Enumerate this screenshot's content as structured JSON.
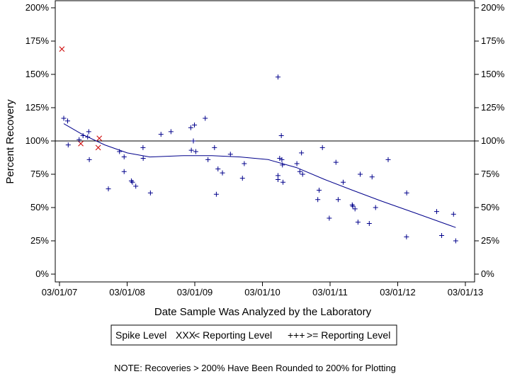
{
  "chart_data": {
    "type": "scatter",
    "xlabel": "Date Sample Was Analyzed by the Laboratory",
    "ylabel": "Percent Recovery",
    "x_ticks": [
      "03/01/07",
      "03/01/08",
      "03/01/09",
      "03/01/10",
      "03/01/11",
      "03/01/12",
      "03/01/13"
    ],
    "x_range": [
      "2007-03-01",
      "2013-03-01"
    ],
    "y_ticks": [
      "0%",
      "25%",
      "50%",
      "75%",
      "100%",
      "125%",
      "150%",
      "175%",
      "200%"
    ],
    "ylim": [
      0,
      200
    ],
    "reference_line": 100,
    "grid": false,
    "legend": {
      "title": "Spike Level",
      "position": "bottom-center",
      "entries": [
        {
          "symbol": "XXX",
          "label": "< Reporting Level",
          "color": "#cc0000"
        },
        {
          "symbol": "+++",
          "label": ">= Reporting Level",
          "color": "#00008b"
        }
      ]
    },
    "series": [
      {
        "name": "< Reporting Level",
        "marker": "x",
        "color": "#cc0000",
        "points": [
          {
            "x": "2007-03-14",
            "y": 169
          },
          {
            "x": "2007-06-24",
            "y": 98
          },
          {
            "x": "2007-09-26",
            "y": 95
          },
          {
            "x": "2007-10-02",
            "y": 102
          }
        ]
      },
      {
        "name": ">= Reporting Level",
        "marker": "+",
        "color": "#00008b",
        "points": [
          {
            "x": "2007-03-24",
            "y": 117
          },
          {
            "x": "2007-04-14",
            "y": 115
          },
          {
            "x": "2007-04-17",
            "y": 97
          },
          {
            "x": "2007-06-15",
            "y": 101
          },
          {
            "x": "2007-07-06",
            "y": 104
          },
          {
            "x": "2007-07-31",
            "y": 103
          },
          {
            "x": "2007-08-06",
            "y": 107
          },
          {
            "x": "2007-08-09",
            "y": 86
          },
          {
            "x": "2007-11-20",
            "y": 64
          },
          {
            "x": "2008-01-19",
            "y": 92
          },
          {
            "x": "2008-02-13",
            "y": 88
          },
          {
            "x": "2008-02-13",
            "y": 77
          },
          {
            "x": "2008-03-23",
            "y": 70
          },
          {
            "x": "2008-03-29",
            "y": 69
          },
          {
            "x": "2008-04-16",
            "y": 66
          },
          {
            "x": "2008-05-25",
            "y": 95
          },
          {
            "x": "2008-05-26",
            "y": 87
          },
          {
            "x": "2008-07-04",
            "y": 61
          },
          {
            "x": "2008-08-30",
            "y": 105
          },
          {
            "x": "2008-10-23",
            "y": 107
          },
          {
            "x": "2009-02-07",
            "y": 110
          },
          {
            "x": "2009-02-10",
            "y": 93
          },
          {
            "x": "2009-02-21",
            "y": 100
          },
          {
            "x": "2009-02-27",
            "y": 112
          },
          {
            "x": "2009-03-06",
            "y": 92
          },
          {
            "x": "2009-04-26",
            "y": 117
          },
          {
            "x": "2009-05-11",
            "y": 86
          },
          {
            "x": "2009-06-15",
            "y": 95
          },
          {
            "x": "2009-06-25",
            "y": 60
          },
          {
            "x": "2009-07-04",
            "y": 79
          },
          {
            "x": "2009-07-28",
            "y": 76
          },
          {
            "x": "2009-09-09",
            "y": 90
          },
          {
            "x": "2009-11-13",
            "y": 72
          },
          {
            "x": "2009-11-23",
            "y": 83
          },
          {
            "x": "2010-05-24",
            "y": 148
          },
          {
            "x": "2010-05-24",
            "y": 74
          },
          {
            "x": "2010-05-24",
            "y": 71
          },
          {
            "x": "2010-06-02",
            "y": 87
          },
          {
            "x": "2010-06-11",
            "y": 104
          },
          {
            "x": "2010-06-14",
            "y": 86
          },
          {
            "x": "2010-06-17",
            "y": 82
          },
          {
            "x": "2010-06-20",
            "y": 69
          },
          {
            "x": "2010-09-03",
            "y": 83
          },
          {
            "x": "2010-09-19",
            "y": 77
          },
          {
            "x": "2010-09-28",
            "y": 91
          },
          {
            "x": "2010-10-04",
            "y": 75
          },
          {
            "x": "2010-12-25",
            "y": 56
          },
          {
            "x": "2011-01-01",
            "y": 63
          },
          {
            "x": "2011-01-19",
            "y": 95
          },
          {
            "x": "2011-02-25",
            "y": 42
          },
          {
            "x": "2011-04-02",
            "y": 84
          },
          {
            "x": "2011-04-14",
            "y": 56
          },
          {
            "x": "2011-05-11",
            "y": 69
          },
          {
            "x": "2011-06-29",
            "y": 52
          },
          {
            "x": "2011-07-02",
            "y": 51
          },
          {
            "x": "2011-07-14",
            "y": 49
          },
          {
            "x": "2011-07-30",
            "y": 39
          },
          {
            "x": "2011-08-11",
            "y": 75
          },
          {
            "x": "2011-09-29",
            "y": 38
          },
          {
            "x": "2011-10-14",
            "y": 73
          },
          {
            "x": "2011-11-02",
            "y": 50
          },
          {
            "x": "2012-01-09",
            "y": 86
          },
          {
            "x": "2012-04-17",
            "y": 28
          },
          {
            "x": "2012-04-18",
            "y": 61
          },
          {
            "x": "2012-09-27",
            "y": 47
          },
          {
            "x": "2012-10-24",
            "y": 29
          },
          {
            "x": "2012-12-27",
            "y": 45
          },
          {
            "x": "2013-01-08",
            "y": 25
          }
        ]
      }
    ],
    "trend_line": {
      "color": "#00008b",
      "points": [
        {
          "x": "2007-03-24",
          "y": 113
        },
        {
          "x": "2007-07-01",
          "y": 105
        },
        {
          "x": "2007-11-01",
          "y": 97
        },
        {
          "x": "2008-03-01",
          "y": 91
        },
        {
          "x": "2008-07-01",
          "y": 88
        },
        {
          "x": "2009-01-01",
          "y": 89
        },
        {
          "x": "2009-06-01",
          "y": 89
        },
        {
          "x": "2009-11-01",
          "y": 88
        },
        {
          "x": "2010-04-01",
          "y": 86
        },
        {
          "x": "2010-09-01",
          "y": 80
        },
        {
          "x": "2011-02-01",
          "y": 71
        },
        {
          "x": "2011-07-01",
          "y": 63
        },
        {
          "x": "2011-12-01",
          "y": 55
        },
        {
          "x": "2012-06-01",
          "y": 46
        },
        {
          "x": "2013-01-08",
          "y": 35
        }
      ]
    },
    "note": "NOTE: Recoveries > 200% Have Been Rounded to 200% for Plotting"
  }
}
